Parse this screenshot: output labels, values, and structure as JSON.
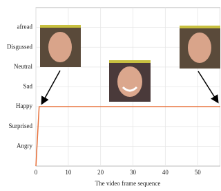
{
  "chart_data": {
    "type": "line",
    "xlabel": "The video frame sequence",
    "x": [
      0,
      1,
      57
    ],
    "series": [
      {
        "name": null,
        "color": "#e8703a",
        "values": [
          0,
          3,
          3
        ]
      }
    ],
    "xlim": [
      0,
      57
    ],
    "xticks": [
      0,
      10,
      20,
      30,
      40,
      50
    ],
    "ylim": [
      0,
      8
    ],
    "yticks": [
      {
        "value": 1,
        "label": "Angry"
      },
      {
        "value": 2,
        "label": "Surprised"
      },
      {
        "value": 3,
        "label": "Happy"
      },
      {
        "value": 4,
        "label": "Sad"
      },
      {
        "value": 5,
        "label": "Neutral"
      },
      {
        "value": 6,
        "label": "Disgussed"
      },
      {
        "value": 7,
        "label": "afread"
      }
    ],
    "grid": true
  }
}
